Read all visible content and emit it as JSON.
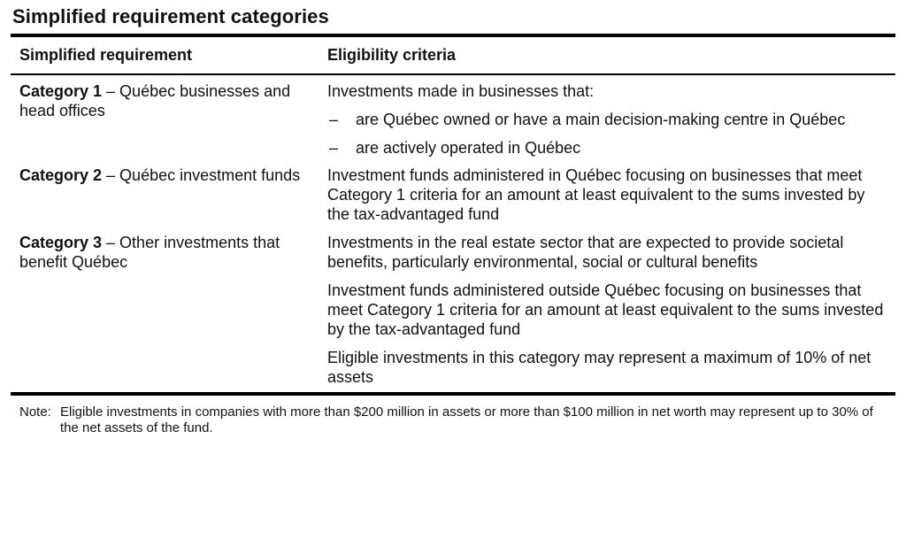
{
  "title": "Simplified requirement categories",
  "table": {
    "headers": {
      "col1": "Simplified requirement",
      "col2": "Eligibility criteria"
    },
    "rows": [
      {
        "category_bold": "Category 1",
        "category_rest": " – Québec businesses and head offices",
        "intro": "Investments made in businesses that:",
        "bullets": [
          "are Québec owned or have a main decision-making centre in Québec",
          "are actively operated in Québec"
        ]
      },
      {
        "category_bold": "Category 2",
        "category_rest": " – Québec investment funds",
        "paragraphs": [
          "Investment funds administered in Québec focusing on businesses that meet Category 1 criteria for an amount at least equivalent to the sums invested by the tax-advantaged fund"
        ]
      },
      {
        "category_bold": "Category 3",
        "category_rest": " – Other investments that benefit Québec",
        "paragraphs": [
          "Investments in the real estate sector that are expected to provide societal benefits, particularly environmental, social or cultural benefits",
          "Investment funds administered outside Québec focusing on businesses that meet Category 1 criteria for an amount at least equivalent to the sums invested by the tax-advantaged fund",
          "Eligible investments in this category may represent a maximum of 10% of net assets"
        ]
      }
    ],
    "bullet_symbol": "–"
  },
  "note": {
    "label": "Note:",
    "text": "Eligible investments in companies with more than $200 million in assets or more than $100 million in net worth may represent up to 30% of the net assets of the fund."
  }
}
